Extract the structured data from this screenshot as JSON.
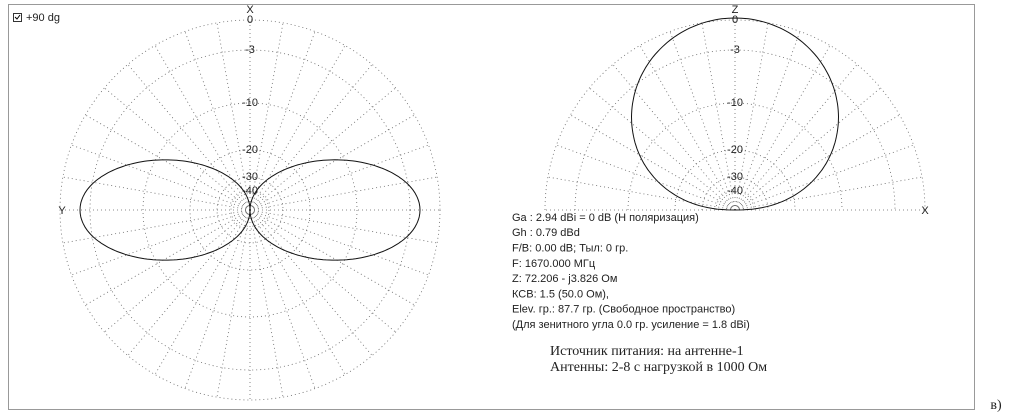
{
  "checkbox": {
    "label": "+90 dg"
  },
  "left_plot": {
    "top_axis": "X",
    "side_axis": "Y",
    "ring_labels": [
      "0",
      "-3",
      "-10",
      "-20",
      "-30",
      "-40"
    ]
  },
  "right_plot": {
    "top_axis": "Z",
    "side_axis": "X",
    "ring_labels": [
      "0",
      "-3",
      "-10",
      "-20",
      "-30",
      "-40"
    ]
  },
  "info": [
    "Ga : 2.94 dBi = 0 dB  (H поляризация)",
    "Gh : 0.79 dBd",
    "F/B: 0.00 dB; Тыл: 0 гр.",
    "F: 1670.000 МГц",
    "Z: 72.206 - j3.826 Ом",
    "КСВ: 1.5 (50.0 Ом),",
    "Elev. гр.: 87.7 гр. (Свободное пространство)",
    "(Для зенитного угла 0.0 гр. усиление = 1.8 dBi)"
  ],
  "notes": [
    "Источник питания: на антенне-1",
    "Антенны: 2-8 с нагрузкой в 1000 Ом"
  ],
  "caption": "в)"
}
